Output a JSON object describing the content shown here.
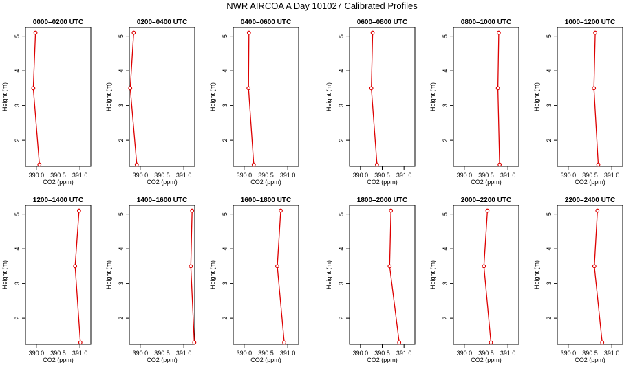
{
  "title": "NWR AIRCOA A  Day 101027  Calibrated Profiles",
  "chart_data": [
    {
      "type": "line",
      "title": "0000–0200 UTC",
      "xlabel": "CO2 (ppm)",
      "ylabel": "Height (m)",
      "xticks": [
        "390.0",
        "390.5",
        "391.0"
      ],
      "yticks": [
        "2",
        "3",
        "4",
        "5"
      ],
      "xlim": [
        389.75,
        391.25
      ],
      "ylim": [
        1.25,
        5.25
      ],
      "series": [
        {
          "name": "profile",
          "points": [
            {
              "x": 390.07,
              "y": 1.3
            },
            {
              "x": 389.93,
              "y": 3.5
            },
            {
              "x": 389.98,
              "y": 5.1
            }
          ]
        }
      ]
    },
    {
      "type": "line",
      "title": "0200–0400 UTC",
      "xlabel": "CO2 (ppm)",
      "ylabel": "Height (m)",
      "xticks": [
        "390.0",
        "390.5",
        "391.0"
      ],
      "yticks": [
        "2",
        "3",
        "4",
        "5"
      ],
      "xlim": [
        389.75,
        391.25
      ],
      "ylim": [
        1.25,
        5.25
      ],
      "series": [
        {
          "name": "profile",
          "points": [
            {
              "x": 389.92,
              "y": 1.3
            },
            {
              "x": 389.77,
              "y": 3.5
            },
            {
              "x": 389.85,
              "y": 5.1
            }
          ]
        }
      ]
    },
    {
      "type": "line",
      "title": "0400–0600 UTC",
      "xlabel": "CO2 (ppm)",
      "ylabel": "Height (m)",
      "xticks": [
        "390.0",
        "390.5",
        "391.0"
      ],
      "yticks": [
        "2",
        "3",
        "4",
        "5"
      ],
      "xlim": [
        389.75,
        391.25
      ],
      "ylim": [
        1.25,
        5.25
      ],
      "series": [
        {
          "name": "profile",
          "points": [
            {
              "x": 390.22,
              "y": 1.3
            },
            {
              "x": 390.1,
              "y": 3.5
            },
            {
              "x": 390.11,
              "y": 5.1
            }
          ]
        }
      ]
    },
    {
      "type": "line",
      "title": "0600–0800 UTC",
      "xlabel": "CO2 (ppm)",
      "ylabel": "Height (m)",
      "xticks": [
        "390.0",
        "390.5",
        "391.0"
      ],
      "yticks": [
        "2",
        "3",
        "4",
        "5"
      ],
      "xlim": [
        389.75,
        391.25
      ],
      "ylim": [
        1.25,
        5.25
      ],
      "series": [
        {
          "name": "profile",
          "points": [
            {
              "x": 390.38,
              "y": 1.3
            },
            {
              "x": 390.25,
              "y": 3.5
            },
            {
              "x": 390.28,
              "y": 5.1
            }
          ]
        }
      ]
    },
    {
      "type": "line",
      "title": "0800–1000 UTC",
      "xlabel": "CO2 (ppm)",
      "ylabel": "Height (m)",
      "xticks": [
        "390.0",
        "390.5",
        "391.0"
      ],
      "yticks": [
        "2",
        "3",
        "4",
        "5"
      ],
      "xlim": [
        389.75,
        391.25
      ],
      "ylim": [
        1.25,
        5.25
      ],
      "series": [
        {
          "name": "profile",
          "points": [
            {
              "x": 390.81,
              "y": 1.3
            },
            {
              "x": 390.77,
              "y": 3.5
            },
            {
              "x": 390.79,
              "y": 5.1
            }
          ]
        }
      ]
    },
    {
      "type": "line",
      "title": "1000–1200 UTC",
      "xlabel": "CO2 (ppm)",
      "ylabel": "Height (m)",
      "xticks": [
        "390.0",
        "390.5",
        "391.0"
      ],
      "yticks": [
        "2",
        "3",
        "4",
        "5"
      ],
      "xlim": [
        389.75,
        391.25
      ],
      "ylim": [
        1.25,
        5.25
      ],
      "series": [
        {
          "name": "profile",
          "points": [
            {
              "x": 390.69,
              "y": 1.3
            },
            {
              "x": 390.59,
              "y": 3.5
            },
            {
              "x": 390.62,
              "y": 5.1
            }
          ]
        }
      ]
    },
    {
      "type": "line",
      "title": "1200–1400 UTC",
      "xlabel": "CO2 (ppm)",
      "ylabel": "Height (m)",
      "xticks": [
        "390.0",
        "390.5",
        "391.0"
      ],
      "yticks": [
        "2",
        "3",
        "4",
        "5"
      ],
      "xlim": [
        389.75,
        391.25
      ],
      "ylim": [
        1.25,
        5.25
      ],
      "series": [
        {
          "name": "profile",
          "points": [
            {
              "x": 391.01,
              "y": 1.3
            },
            {
              "x": 390.89,
              "y": 3.5
            },
            {
              "x": 390.98,
              "y": 5.1
            }
          ]
        }
      ]
    },
    {
      "type": "line",
      "title": "1400–1600 UTC",
      "xlabel": "CO2 (ppm)",
      "ylabel": "Height (m)",
      "xticks": [
        "390.0",
        "390.5",
        "391.0"
      ],
      "yticks": [
        "2",
        "3",
        "4",
        "5"
      ],
      "xlim": [
        389.75,
        391.25
      ],
      "ylim": [
        1.25,
        5.25
      ],
      "series": [
        {
          "name": "profile",
          "points": [
            {
              "x": 391.24,
              "y": 1.3
            },
            {
              "x": 391.16,
              "y": 3.5
            },
            {
              "x": 391.19,
              "y": 5.1
            }
          ]
        }
      ]
    },
    {
      "type": "line",
      "title": "1600–1800 UTC",
      "xlabel": "CO2 (ppm)",
      "ylabel": "Height (m)",
      "xticks": [
        "390.0",
        "390.5",
        "391.0"
      ],
      "yticks": [
        "2",
        "3",
        "4",
        "5"
      ],
      "xlim": [
        389.75,
        391.25
      ],
      "ylim": [
        1.25,
        5.25
      ],
      "series": [
        {
          "name": "profile",
          "points": [
            {
              "x": 390.92,
              "y": 1.3
            },
            {
              "x": 390.76,
              "y": 3.5
            },
            {
              "x": 390.84,
              "y": 5.1
            }
          ]
        }
      ]
    },
    {
      "type": "line",
      "title": "1800–2000 UTC",
      "xlabel": "CO2 (ppm)",
      "ylabel": "Height (m)",
      "xticks": [
        "390.0",
        "390.5",
        "391.0"
      ],
      "yticks": [
        "2",
        "3",
        "4",
        "5"
      ],
      "xlim": [
        389.75,
        391.25
      ],
      "ylim": [
        1.25,
        5.25
      ],
      "series": [
        {
          "name": "profile",
          "points": [
            {
              "x": 390.89,
              "y": 1.3
            },
            {
              "x": 390.67,
              "y": 3.5
            },
            {
              "x": 390.7,
              "y": 5.1
            }
          ]
        }
      ]
    },
    {
      "type": "line",
      "title": "2000–2200 UTC",
      "xlabel": "CO2 (ppm)",
      "ylabel": "Height (m)",
      "xticks": [
        "390.0",
        "390.5",
        "391.0"
      ],
      "yticks": [
        "2",
        "3",
        "4",
        "5"
      ],
      "xlim": [
        389.75,
        391.25
      ],
      "ylim": [
        1.25,
        5.25
      ],
      "series": [
        {
          "name": "profile",
          "points": [
            {
              "x": 390.61,
              "y": 1.3
            },
            {
              "x": 390.45,
              "y": 3.5
            },
            {
              "x": 390.53,
              "y": 5.1
            }
          ]
        }
      ]
    },
    {
      "type": "line",
      "title": "2200–2400 UTC",
      "xlabel": "CO2 (ppm)",
      "ylabel": "Height (m)",
      "xticks": [
        "390.0",
        "390.5",
        "391.0"
      ],
      "yticks": [
        "2",
        "3",
        "4",
        "5"
      ],
      "xlim": [
        389.75,
        391.25
      ],
      "ylim": [
        1.25,
        5.25
      ],
      "series": [
        {
          "name": "profile",
          "points": [
            {
              "x": 390.78,
              "y": 1.3
            },
            {
              "x": 390.6,
              "y": 3.5
            },
            {
              "x": 390.67,
              "y": 5.1
            }
          ]
        }
      ]
    }
  ]
}
